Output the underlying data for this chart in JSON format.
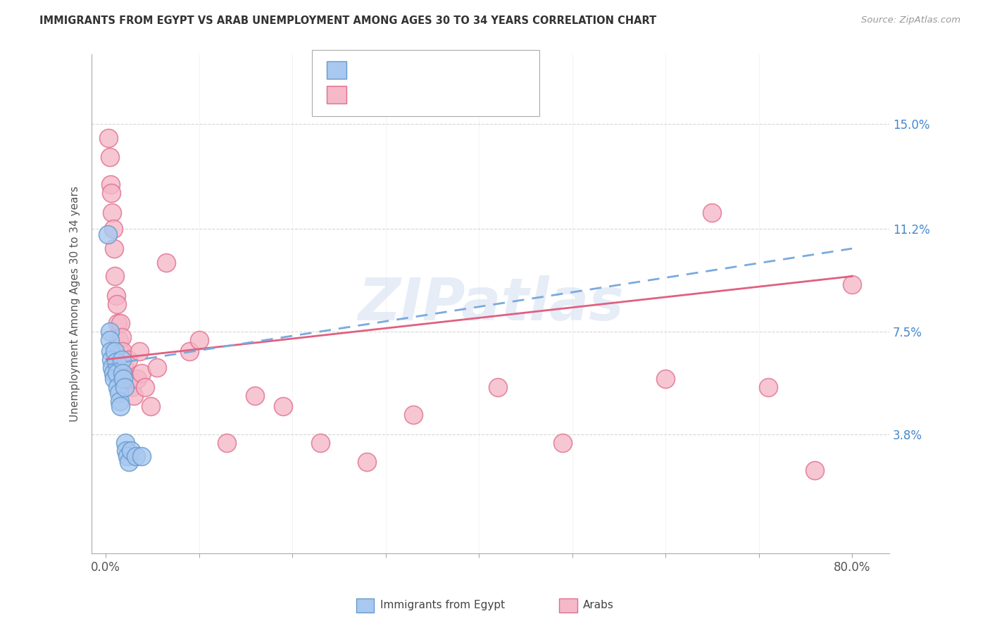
{
  "title": "IMMIGRANTS FROM EGYPT VS ARAB UNEMPLOYMENT AMONG AGES 30 TO 34 YEARS CORRELATION CHART",
  "source": "Source: ZipAtlas.com",
  "ylabel": "Unemployment Among Ages 30 to 34 years",
  "xlim_min": 0.0,
  "xlim_max": 0.8,
  "ylim_min": -0.005,
  "ylim_max": 0.175,
  "xtick_vals": [
    0.0,
    0.1,
    0.2,
    0.3,
    0.4,
    0.5,
    0.6,
    0.7,
    0.8
  ],
  "xticklabels": [
    "0.0%",
    "",
    "",
    "",
    "",
    "",
    "",
    "",
    "80.0%"
  ],
  "ytick_vals": [
    0.038,
    0.075,
    0.112,
    0.15
  ],
  "ytick_labels": [
    "3.8%",
    "7.5%",
    "11.2%",
    "15.0%"
  ],
  "blue_fill": "#a8c8f0",
  "blue_edge": "#6699cc",
  "pink_fill": "#f5b8c8",
  "pink_edge": "#e07090",
  "trendline_blue": "#7aaadd",
  "trendline_pink": "#e06080",
  "watermark": "ZIPatlas",
  "egypt_x": [
    0.002,
    0.004,
    0.004,
    0.005,
    0.006,
    0.007,
    0.008,
    0.009,
    0.01,
    0.011,
    0.012,
    0.013,
    0.014,
    0.015,
    0.016,
    0.017,
    0.018,
    0.019,
    0.02,
    0.021,
    0.022,
    0.023,
    0.025,
    0.027,
    0.032,
    0.038
  ],
  "egypt_y": [
    0.11,
    0.075,
    0.072,
    0.068,
    0.065,
    0.062,
    0.06,
    0.058,
    0.068,
    0.064,
    0.06,
    0.055,
    0.053,
    0.05,
    0.048,
    0.065,
    0.06,
    0.058,
    0.055,
    0.035,
    0.032,
    0.03,
    0.028,
    0.032,
    0.03,
    0.03
  ],
  "arab_x": [
    0.003,
    0.004,
    0.005,
    0.006,
    0.007,
    0.008,
    0.009,
    0.01,
    0.011,
    0.012,
    0.013,
    0.014,
    0.015,
    0.016,
    0.017,
    0.018,
    0.02,
    0.022,
    0.024,
    0.026,
    0.028,
    0.03,
    0.034,
    0.036,
    0.038,
    0.042,
    0.048,
    0.055,
    0.065,
    0.09,
    0.1,
    0.13,
    0.16,
    0.19,
    0.23,
    0.28,
    0.33,
    0.42,
    0.49,
    0.6,
    0.65,
    0.71,
    0.76,
    0.8
  ],
  "arab_y": [
    0.145,
    0.138,
    0.128,
    0.125,
    0.118,
    0.112,
    0.105,
    0.095,
    0.088,
    0.085,
    0.078,
    0.072,
    0.068,
    0.078,
    0.073,
    0.068,
    0.062,
    0.058,
    0.065,
    0.058,
    0.055,
    0.052,
    0.058,
    0.068,
    0.06,
    0.055,
    0.048,
    0.062,
    0.1,
    0.068,
    0.072,
    0.035,
    0.052,
    0.048,
    0.035,
    0.028,
    0.045,
    0.055,
    0.035,
    0.058,
    0.118,
    0.055,
    0.025,
    0.092
  ]
}
